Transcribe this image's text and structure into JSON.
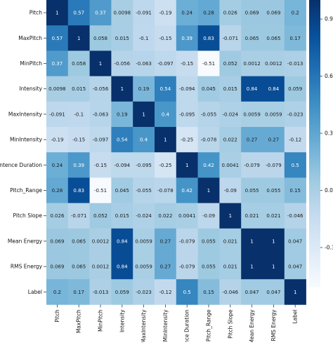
{
  "chart_data": {
    "type": "heatmap",
    "title": "",
    "xlabel": "",
    "ylabel": "",
    "rows": [
      "Pitch",
      "MaxPitch",
      "MinPitch",
      "Intensity",
      "MaxIntensity",
      "MinIntensity",
      "Sentence Duration",
      "Pitch_Range",
      "Pitch Slope",
      "Mean Energy",
      "RMS Energy",
      "Label"
    ],
    "columns": [
      "Pitch",
      "MaxPitch",
      "MinPitch",
      "Intensity",
      "MaxIntensity",
      "MinIntensity",
      "Sentence Duration",
      "Pitch_Range",
      "Pitch Slope",
      "Mean Energy",
      "RMS Energy",
      "Label"
    ],
    "values": [
      [
        1,
        0.57,
        0.37,
        0.0098,
        -0.091,
        -0.19,
        0.24,
        0.28,
        0.026,
        0.069,
        0.069,
        0.2
      ],
      [
        0.57,
        1,
        0.058,
        0.015,
        -0.1,
        -0.15,
        0.39,
        0.83,
        -0.071,
        0.065,
        0.065,
        0.17
      ],
      [
        0.37,
        0.058,
        1,
        -0.056,
        -0.063,
        -0.097,
        -0.15,
        -0.51,
        0.052,
        0.0012,
        0.0012,
        -0.013
      ],
      [
        0.0098,
        0.015,
        -0.056,
        1,
        0.19,
        0.54,
        -0.094,
        0.045,
        0.015,
        0.84,
        0.84,
        0.059
      ],
      [
        -0.091,
        -0.1,
        -0.063,
        0.19,
        1,
        0.4,
        -0.095,
        -0.055,
        -0.024,
        0.0059,
        0.0059,
        -0.023
      ],
      [
        -0.19,
        -0.15,
        -0.097,
        0.54,
        0.4,
        1,
        -0.25,
        -0.078,
        0.022,
        0.27,
        0.27,
        -0.12
      ],
      [
        0.24,
        0.39,
        -0.15,
        -0.094,
        -0.095,
        -0.25,
        1,
        0.42,
        0.0041,
        -0.079,
        -0.079,
        0.5
      ],
      [
        0.28,
        0.83,
        -0.51,
        0.045,
        -0.055,
        -0.078,
        0.42,
        1,
        -0.09,
        0.055,
        0.055,
        0.15
      ],
      [
        0.026,
        -0.071,
        0.052,
        0.015,
        -0.024,
        0.022,
        0.0041,
        -0.09,
        1,
        0.021,
        0.021,
        -0.046
      ],
      [
        0.069,
        0.065,
        0.0012,
        0.84,
        0.0059,
        0.27,
        -0.079,
        0.055,
        0.021,
        1,
        1,
        0.047
      ],
      [
        0.069,
        0.065,
        0.0012,
        0.84,
        0.0059,
        0.27,
        -0.079,
        0.055,
        0.021,
        1,
        1,
        0.047
      ],
      [
        0.2,
        0.17,
        -0.013,
        0.059,
        -0.023,
        -0.12,
        0.5,
        0.15,
        -0.046,
        0.047,
        0.047,
        1
      ]
    ],
    "labels": [
      [
        "1",
        "0.57",
        "0.37",
        "0.0098",
        "-0.091",
        "-0.19",
        "0.24",
        "0.28",
        "0.026",
        "0.069",
        "0.069",
        "0.2"
      ],
      [
        "0.57",
        "1",
        "0.058",
        "0.015",
        "-0.1",
        "-0.15",
        "0.39",
        "0.83",
        "-0.071",
        "0.065",
        "0.065",
        "0.17"
      ],
      [
        "0.37",
        "0.058",
        "1",
        "-0.056",
        "-0.063",
        "-0.097",
        "-0.15",
        "-0.51",
        "0.052",
        "0.0012",
        "0.0012",
        "-0.013"
      ],
      [
        "0.0098",
        "0.015",
        "-0.056",
        "1",
        "0.19",
        "0.54",
        "-0.094",
        "0.045",
        "0.015",
        "0.84",
        "0.84",
        "0.059"
      ],
      [
        "-0.091",
        "-0.1",
        "-0.063",
        "0.19",
        "1",
        "0.4",
        "-0.095",
        "-0.055",
        "-0.024",
        "0.0059",
        "0.0059",
        "-0.023"
      ],
      [
        "-0.19",
        "-0.15",
        "-0.097",
        "0.54",
        "0.4",
        "1",
        "-0.25",
        "-0.078",
        "0.022",
        "0.27",
        "0.27",
        "-0.12"
      ],
      [
        "0.24",
        "0.39",
        "-0.15",
        "-0.094",
        "-0.095",
        "-0.25",
        "1",
        "0.42",
        "0.0041",
        "-0.079",
        "-0.079",
        "0.5"
      ],
      [
        "0.28",
        "0.83",
        "-0.51",
        "0.045",
        "-0.055",
        "-0.078",
        "0.42",
        "1",
        "-0.09",
        "0.055",
        "0.055",
        "0.15"
      ],
      [
        "0.026",
        "-0.071",
        "0.052",
        "0.015",
        "-0.024",
        "0.022",
        "0.0041",
        "-0.09",
        "1",
        "0.021",
        "0.021",
        "-0.046"
      ],
      [
        "0.069",
        "0.065",
        "0.0012",
        "0.84",
        "0.0059",
        "0.27",
        "-0.079",
        "0.055",
        "0.021",
        "1",
        "1",
        "0.047"
      ],
      [
        "0.069",
        "0.065",
        "0.0012",
        "0.84",
        "0.0059",
        "0.27",
        "-0.079",
        "0.055",
        "0.021",
        "1",
        "1",
        "0.047"
      ],
      [
        "0.2",
        "0.17",
        "-0.013",
        "0.059",
        "-0.023",
        "-0.12",
        "0.5",
        "0.15",
        "-0.046",
        "0.047",
        "0.047",
        "1"
      ]
    ],
    "colorbar": {
      "range": [
        -0.51,
        1
      ],
      "ticks": [
        0.9,
        0.6,
        0.3,
        0.0,
        -0.3
      ],
      "tick_labels": [
        "0.9",
        "0.6",
        "0.3",
        "0.0",
        "-0.3"
      ]
    },
    "colormap": {
      "name": "Blues",
      "low_color": "#f7fbff",
      "high_color": "#08306b"
    },
    "grid": false,
    "legend": "colorbar-right"
  }
}
